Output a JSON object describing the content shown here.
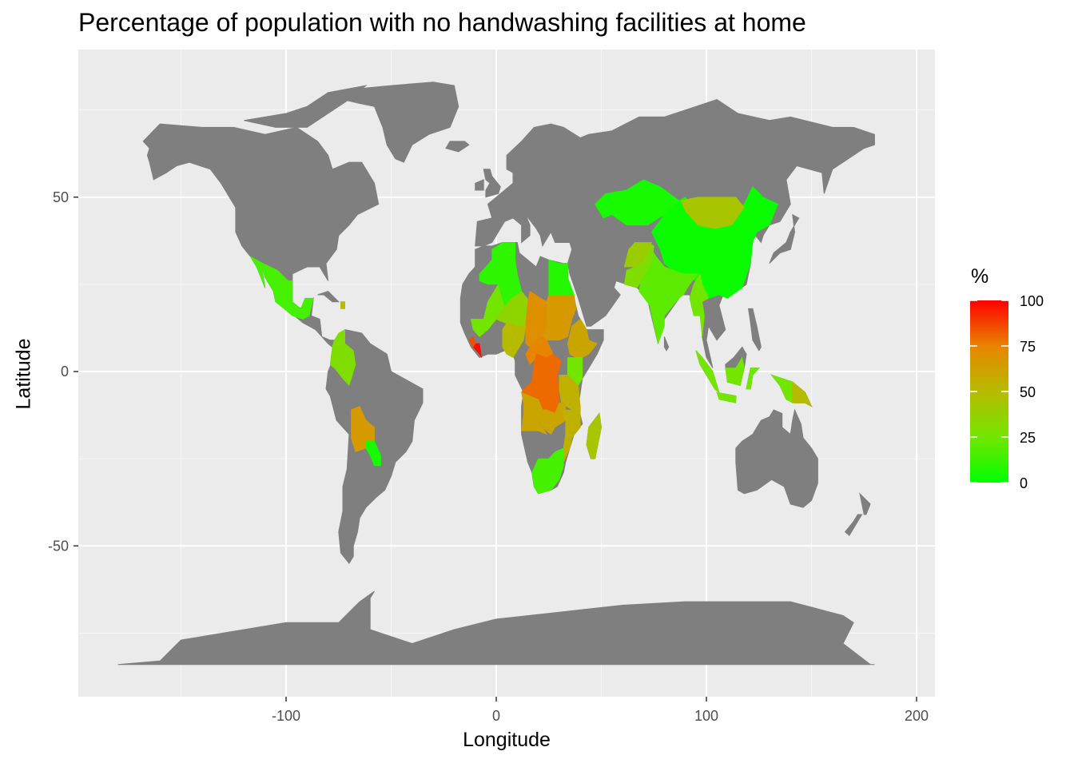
{
  "chart_data": {
    "type": "map",
    "title": "Percentage of population with no handwashing facilities at home",
    "xlabel": "Longitude",
    "ylabel": "Latitude",
    "xlim": [
      -180,
      200
    ],
    "ylim": [
      -90,
      85
    ],
    "x_ticks": [
      -100,
      0,
      100,
      200
    ],
    "y_ticks": [
      -50,
      0,
      50
    ],
    "x_tick_labels": [
      "-100",
      "0",
      "100",
      "200"
    ],
    "y_tick_labels": [
      "-50",
      "0",
      "50"
    ],
    "grid": true,
    "background_color": "#ebebeb",
    "missing_color": "#7f7f7f",
    "legend": {
      "title": "%",
      "placement": "right",
      "range": [
        0,
        100
      ],
      "breaks": [
        0,
        25,
        50,
        75,
        100
      ],
      "break_labels": [
        "0",
        "25",
        "50",
        "75",
        "100"
      ],
      "low_color": "#00ff00",
      "high_color": "#ff0000"
    },
    "regions_with_data": [
      {
        "region": "China",
        "value": 2
      },
      {
        "region": "Mongolia",
        "value": 45
      },
      {
        "region": "Kazakhstan",
        "value": 5
      },
      {
        "region": "India",
        "value": 20
      },
      {
        "region": "Pakistan",
        "value": 30
      },
      {
        "region": "Afghanistan",
        "value": 40
      },
      {
        "region": "Myanmar",
        "value": 25
      },
      {
        "region": "Indonesia",
        "value": 25
      },
      {
        "region": "Papua New Guinea",
        "value": 50
      },
      {
        "region": "Mexico",
        "value": 15
      },
      {
        "region": "Colombia",
        "value": 30
      },
      {
        "region": "Bolivia",
        "value": 65
      },
      {
        "region": "Paraguay",
        "value": 5
      },
      {
        "region": "Haiti",
        "value": 50
      },
      {
        "region": "Mali",
        "value": 25
      },
      {
        "region": "Niger",
        "value": 35
      },
      {
        "region": "Chad",
        "value": 70
      },
      {
        "region": "Sudan",
        "value": 65
      },
      {
        "region": "Liberia",
        "value": 98
      },
      {
        "region": "Sierra Leone",
        "value": 85
      },
      {
        "region": "Nigeria",
        "value": 50
      },
      {
        "region": "Central African Republic",
        "value": 75
      },
      {
        "region": "DR Congo",
        "value": 80
      },
      {
        "region": "Ethiopia",
        "value": 60
      },
      {
        "region": "Kenya",
        "value": 25
      },
      {
        "region": "Tanzania",
        "value": 55
      },
      {
        "region": "Angola",
        "value": 60
      },
      {
        "region": "Zambia",
        "value": 60
      },
      {
        "region": "Mozambique",
        "value": 55
      },
      {
        "region": "Madagascar",
        "value": 45
      },
      {
        "region": "South Africa",
        "value": 15
      },
      {
        "region": "Egypt",
        "value": 8
      },
      {
        "region": "Algeria",
        "value": 10
      }
    ]
  }
}
